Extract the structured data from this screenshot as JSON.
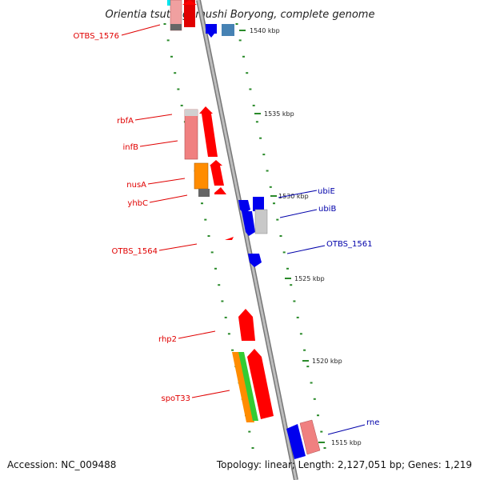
{
  "title": "Orientia tsutsugamushi Boryong, complete genome",
  "ticks": [
    {
      "label": "1540 kbp",
      "position_kbp": 1540
    },
    {
      "label": "1535 kbp",
      "position_kbp": 1535
    },
    {
      "label": "1530 kbp",
      "position_kbp": 1530
    },
    {
      "label": "1525 kbp",
      "position_kbp": 1525
    },
    {
      "label": "1520 kbp",
      "position_kbp": 1520
    },
    {
      "label": "1515 kbp",
      "position_kbp": 1515
    }
  ],
  "genes_left": [
    {
      "name": "OTBS_1576",
      "color": "#e00000"
    },
    {
      "name": "rbfA",
      "color": "#e00000"
    },
    {
      "name": "infB",
      "color": "#e00000"
    },
    {
      "name": "nusA",
      "color": "#e00000"
    },
    {
      "name": "yhbC",
      "color": "#e00000"
    },
    {
      "name": "OTBS_1564",
      "color": "#e00000"
    },
    {
      "name": "rhp2",
      "color": "#e00000"
    },
    {
      "name": "spoT33",
      "color": "#e00000"
    }
  ],
  "genes_right": [
    {
      "name": "ubiE",
      "color": "#0000aa"
    },
    {
      "name": "ubiB",
      "color": "#0000aa"
    },
    {
      "name": "OTBS_1561",
      "color": "#0000aa"
    },
    {
      "name": "rne",
      "color": "#0000aa"
    }
  ],
  "colors": {
    "axis": "#8a8a8a",
    "tick_dots": "#2a8a2a",
    "forward_gene": "#ff0000",
    "reverse_gene": "#0000ff",
    "light_red": "#f08080",
    "orange": "#ff8c00",
    "green": "#33cc33",
    "grey": "#c0c0c0",
    "steel_blue": "#4682b4",
    "cyan": "#00e5ee"
  },
  "footer": {
    "accession": "Accession: NC_009488",
    "stats": "Topology: linear; Length: 2,127,051 bp; Genes: 1,219"
  }
}
